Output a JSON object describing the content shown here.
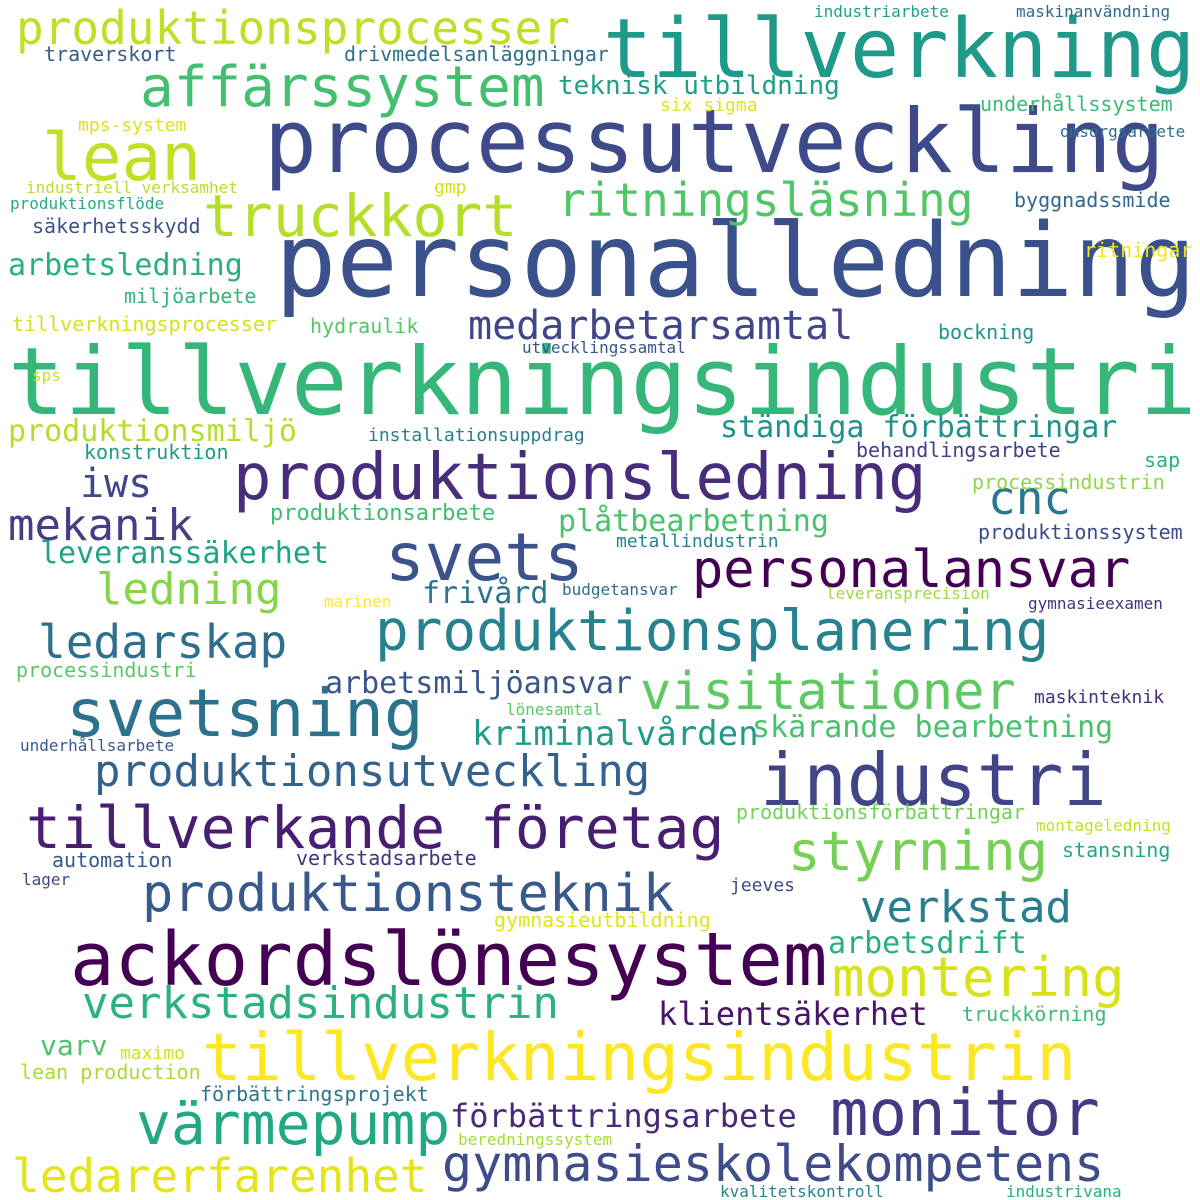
{
  "words": [
    {
      "text": "personalledning",
      "color": "#3b518b"
    },
    {
      "text": "processutveckling",
      "color": "#3e4a89"
    },
    {
      "text": "tillverkning",
      "color": "#1f998a"
    },
    {
      "text": "produktionsprocesser",
      "color": "#bddf26"
    },
    {
      "text": "affärssystem",
      "color": "#44bf70"
    },
    {
      "text": "lean",
      "color": "#c2df23"
    },
    {
      "text": "truckkort",
      "color": "#b5de2b"
    },
    {
      "text": "ritningsläsning",
      "color": "#52c569"
    },
    {
      "text": "tillverkningsindustri",
      "color": "#35b779"
    },
    {
      "text": "produktionsledning",
      "color": "#472d7b"
    },
    {
      "text": "medarbetarsamtal",
      "color": "#404688"
    },
    {
      "text": "arbetsledning",
      "color": "#29af7f"
    },
    {
      "text": "produktionsmiljö",
      "color": "#b5de2b"
    },
    {
      "text": "ständiga förbättringar",
      "color": "#21918c"
    },
    {
      "text": "iws",
      "color": "#3f4788"
    },
    {
      "text": "cnc",
      "color": "#2a788e"
    },
    {
      "text": "mekanik",
      "color": "#433e85"
    },
    {
      "text": "svets",
      "color": "#3b528b"
    },
    {
      "text": "personalansvar",
      "color": "#440154"
    },
    {
      "text": "plåtbearbetning",
      "color": "#4ac16d"
    },
    {
      "text": "leveranssäkerhet",
      "color": "#20a486"
    },
    {
      "text": "ledning",
      "color": "#86d549"
    },
    {
      "text": "frivård",
      "color": "#2a768e"
    },
    {
      "text": "produktionsplanering",
      "color": "#26828e"
    },
    {
      "text": "ledarskap",
      "color": "#2e6f8e"
    },
    {
      "text": "visitationer",
      "color": "#5ec962"
    },
    {
      "text": "arbetsmiljöansvar",
      "color": "#3a548c"
    },
    {
      "text": "svetsning",
      "color": "#2c728e"
    },
    {
      "text": "kriminalvården",
      "color": "#1e9b8a"
    },
    {
      "text": "skärande bearbetning",
      "color": "#48c16e"
    },
    {
      "text": "industri",
      "color": "#414487"
    },
    {
      "text": "produktionsutveckling",
      "color": "#33638d"
    },
    {
      "text": "tillverkande företag",
      "color": "#481f70"
    },
    {
      "text": "styrning",
      "color": "#75d054"
    },
    {
      "text": "produktionsteknik",
      "color": "#38598c"
    },
    {
      "text": "verkstad",
      "color": "#287d8e"
    },
    {
      "text": "arbetsdrift",
      "color": "#28ae80"
    },
    {
      "text": "ackordslönesystem",
      "color": "#440154"
    },
    {
      "text": "montering",
      "color": "#d8e219"
    },
    {
      "text": "verkstadsindustrin",
      "color": "#2db27d"
    },
    {
      "text": "klientsäkerhet",
      "color": "#481567"
    },
    {
      "text": "tillverkningsindustrin",
      "color": "#fde725"
    },
    {
      "text": "värmepump",
      "color": "#22a884"
    },
    {
      "text": "monitor",
      "color": "#443a83"
    },
    {
      "text": "förbättringsarbete",
      "color": "#482878"
    },
    {
      "text": "gymnasieskolekompetens",
      "color": "#3e4c8a"
    },
    {
      "text": "ledarerfarenhet",
      "color": "#e5e419"
    },
    {
      "text": "varv",
      "color": "#4ec36b"
    },
    {
      "text": "maximo",
      "color": "#d2e21b"
    },
    {
      "text": "lean production",
      "color": "#aadc32"
    },
    {
      "text": "förbättringsprojekt",
      "color": "#2a768e"
    },
    {
      "text": "beredningssystem",
      "color": "#a5db36"
    },
    {
      "text": "kvalitetskontroll",
      "color": "#25848e"
    },
    {
      "text": "industrivana",
      "color": "#29af7f"
    },
    {
      "text": "traverskort",
      "color": "#365c8d"
    },
    {
      "text": "drivmedelsanläggningar",
      "color": "#2d708e"
    },
    {
      "text": "industriarbete",
      "color": "#1fa187"
    },
    {
      "text": "maskinanvändning",
      "color": "#306a8e"
    },
    {
      "text": "teknisk utbildning",
      "color": "#1f9e89"
    },
    {
      "text": "six sigma",
      "color": "#e2e418"
    },
    {
      "text": "underhållssystem",
      "color": "#3aba76"
    },
    {
      "text": "mps-system",
      "color": "#dde318"
    },
    {
      "text": "omsorgsarbete",
      "color": "#2e6e8e"
    },
    {
      "text": "industriell verksamhet",
      "color": "#b8de29"
    },
    {
      "text": "gmp",
      "color": "#d0e11c"
    },
    {
      "text": "produktionsflöde",
      "color": "#25ab82"
    },
    {
      "text": "säkerhetsskydd",
      "color": "#3b528b"
    },
    {
      "text": "byggnadssmide",
      "color": "#31678e"
    },
    {
      "text": "ritningar",
      "color": "#f1e51d"
    },
    {
      "text": "miljöarbete",
      "color": "#34b679"
    },
    {
      "text": "tillverkningsprocesser",
      "color": "#d5e21a"
    },
    {
      "text": "hydraulik",
      "color": "#54c568"
    },
    {
      "text": "bockning",
      "color": "#1f958b"
    },
    {
      "text": "utvecklingssamtal",
      "color": "#39558c"
    },
    {
      "text": "sps",
      "color": "#c8e020"
    },
    {
      "text": "installationsuppdrag",
      "color": "#277e8e"
    },
    {
      "text": "konstruktion",
      "color": "#1e9c89"
    },
    {
      "text": "behandlingsarbete",
      "color": "#424086"
    },
    {
      "text": "sap",
      "color": "#2ab07f"
    },
    {
      "text": "processindustrin",
      "color": "#8fd744"
    },
    {
      "text": "produktionsarbete",
      "color": "#3dbc74"
    },
    {
      "text": "produktionssystem",
      "color": "#3e4989"
    },
    {
      "text": "metallindustrin",
      "color": "#25848e"
    },
    {
      "text": "budgetansvar",
      "color": "#2f6c8e"
    },
    {
      "text": "marinen",
      "color": "#fde725"
    },
    {
      "text": "leveransprecision",
      "color": "#a0da39"
    },
    {
      "text": "gymnasieexamen",
      "color": "#46337e"
    },
    {
      "text": "processindustri",
      "color": "#5cc863"
    },
    {
      "text": "maskinteknik",
      "color": "#472f7d"
    },
    {
      "text": "lönesamtal",
      "color": "#5ac864"
    },
    {
      "text": "underhållsarbete",
      "color": "#375a8c"
    },
    {
      "text": "produktionsförbättringar",
      "color": "#73d056"
    },
    {
      "text": "montageledning",
      "color": "#c2df23"
    },
    {
      "text": "automation",
      "color": "#38588c"
    },
    {
      "text": "verkstadsarbete",
      "color": "#46327e"
    },
    {
      "text": "stansning",
      "color": "#22a785"
    },
    {
      "text": "lager",
      "color": "#3f4889"
    },
    {
      "text": "jeeves",
      "color": "#3e4a89"
    },
    {
      "text": "gymnasieutbildning",
      "color": "#e3e418"
    },
    {
      "text": "truckkörning",
      "color": "#3bbb75"
    }
  ]
}
